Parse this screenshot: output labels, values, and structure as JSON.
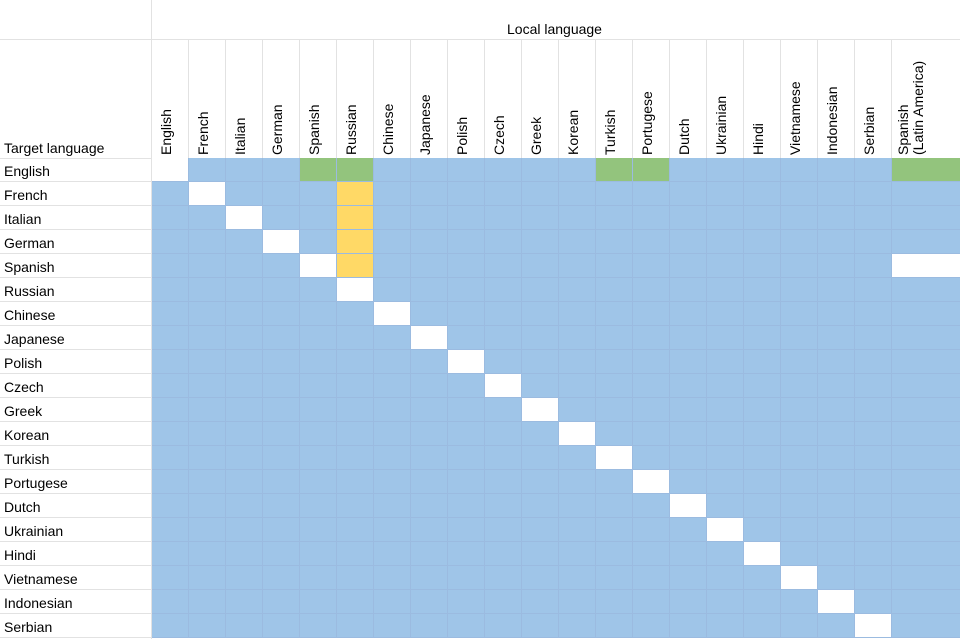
{
  "sheet": {
    "header_title": "Local language",
    "row_header_title": "Target language",
    "columns": [
      "English",
      "French",
      "Italian",
      "German",
      "Spanish",
      "Russian",
      "Chinese",
      "Japanese",
      "Polish",
      "Czech",
      "Greek",
      "Korean",
      "Turkish",
      "Portugese",
      "Dutch",
      "Ukrainian",
      "Hindi",
      "Vietnamese",
      "Indonesian",
      "Serbian",
      [
        "Spanish",
        "(Latin America)"
      ]
    ],
    "rows": [
      "English",
      "French",
      "Italian",
      "German",
      "Spanish",
      "Russian",
      "Chinese",
      "Japanese",
      "Polish",
      "Czech",
      "Greek",
      "Korean",
      "Turkish",
      "Portugese",
      "Dutch",
      "Ukrainian",
      "Hindi",
      "Vietnamese",
      "Indonesian",
      "Serbian"
    ],
    "colors": {
      "blue": "#9fc5e8",
      "green": "#93c47d",
      "yellow": "#ffd966",
      "white": "#ffffff"
    },
    "cell_status": {
      "green": [
        [
          0,
          4
        ],
        [
          0,
          5
        ],
        [
          0,
          12
        ],
        [
          0,
          13
        ],
        [
          0,
          20
        ]
      ],
      "yellow": [
        [
          1,
          5
        ],
        [
          2,
          5
        ],
        [
          3,
          5
        ],
        [
          4,
          5
        ]
      ],
      "white": [
        [
          0,
          0
        ],
        [
          1,
          1
        ],
        [
          2,
          2
        ],
        [
          3,
          3
        ],
        [
          4,
          4
        ],
        [
          5,
          5
        ],
        [
          6,
          6
        ],
        [
          7,
          7
        ],
        [
          8,
          8
        ],
        [
          9,
          9
        ],
        [
          10,
          10
        ],
        [
          11,
          11
        ],
        [
          12,
          12
        ],
        [
          13,
          13
        ],
        [
          14,
          14
        ],
        [
          15,
          15
        ],
        [
          16,
          16
        ],
        [
          17,
          17
        ],
        [
          18,
          18
        ],
        [
          19,
          19
        ],
        [
          4,
          20
        ]
      ]
    }
  }
}
